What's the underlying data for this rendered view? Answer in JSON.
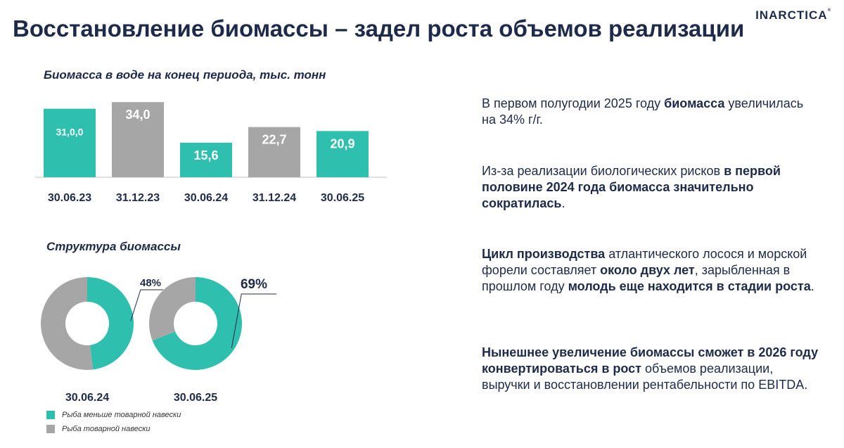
{
  "logo": "INARCTICA",
  "logo_mark": "®",
  "title": "Восстановление биомассы – задел роста объемов реализации",
  "colors": {
    "teal": "#2fbfae",
    "gray": "#a6a6a6",
    "navy": "#1e2a4a"
  },
  "bar_section": {
    "subtitle": "Биомасса в воде на конец периода, тыс. тонн"
  },
  "donut_section": {
    "subtitle": "Структура биомассы"
  },
  "chart_data": [
    {
      "type": "bar",
      "title": "Биомасса в воде на конец периода, тыс. тонн",
      "categories": [
        "30.06.23",
        "31.12.23",
        "30.06.24",
        "31.12.24",
        "30.06.25"
      ],
      "values": [
        31.0,
        34.0,
        15.6,
        22.7,
        20.9
      ],
      "labels": [
        "31,0,0",
        "34,0",
        "15,6",
        "22,7",
        "20,9"
      ],
      "bar_colors": [
        "#2fbfae",
        "#a6a6a6",
        "#2fbfae",
        "#a6a6a6",
        "#2fbfae"
      ],
      "ylim": [
        0,
        35
      ],
      "xlabel": "",
      "ylabel": ""
    },
    {
      "type": "pie",
      "title": "Структура биомассы",
      "charts": [
        {
          "label": "30.06.24",
          "share_under": 48,
          "share_label": "48%"
        },
        {
          "label": "30.06.25",
          "share_under": 69,
          "share_label": "69%"
        }
      ],
      "legend": [
        {
          "label": "Рыба меньше товарной навески",
          "color": "#2fbfae"
        },
        {
          "label": "Рыба товарной навески",
          "color": "#a6a6a6"
        }
      ]
    }
  ],
  "paragraphs": [
    [
      {
        "t": "В первом полугодии 2025 году ",
        "b": false
      },
      {
        "t": "биомасса",
        "b": true
      },
      {
        "t": " увеличилась на 34% г/г.",
        "b": false
      }
    ],
    [
      {
        "t": "Из-за реализации биологических рисков ",
        "b": false
      },
      {
        "t": "в первой половине 2024 года биомасса значительно сократилась",
        "b": true
      },
      {
        "t": ".",
        "b": false
      }
    ],
    [
      {
        "t": "Цикл производства",
        "b": true
      },
      {
        "t": " атлантического лосося и морской форели составляет ",
        "b": false
      },
      {
        "t": "около двух лет",
        "b": true
      },
      {
        "t": ", зарыбленная в прошлом году ",
        "b": false
      },
      {
        "t": "молодь еще находится в стадии роста",
        "b": true
      },
      {
        "t": ".",
        "b": false
      }
    ],
    [
      {
        "t": "Нынешнее увеличение биомассы сможет в 2026 году конвертироваться в рост",
        "b": true
      },
      {
        "t": " объемов реализации, выручки и восстановлении рентабельности по EBITDA.",
        "b": false
      }
    ]
  ]
}
